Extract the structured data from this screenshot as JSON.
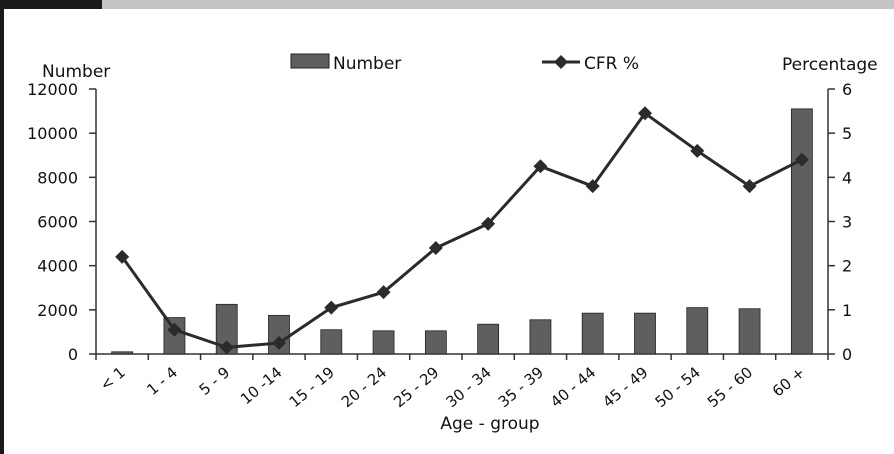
{
  "chart_data": {
    "type": "bar",
    "categories": [
      "< 1",
      "1 - 4",
      "5 - 9",
      "10 -14",
      "15 - 19",
      "20 - 24",
      "25 - 29",
      "30 - 34",
      "35 - 39",
      "40 - 44",
      "45 - 49",
      "50 - 54",
      "55 - 60",
      "60 +"
    ],
    "series": [
      {
        "name": "Number",
        "type": "bar",
        "axis": "left",
        "color": "#5f5f5f",
        "values": [
          100,
          1650,
          2250,
          1750,
          1100,
          1050,
          1050,
          1350,
          1550,
          1850,
          1850,
          2100,
          2050,
          11100
        ]
      },
      {
        "name": "CFR %",
        "type": "line",
        "axis": "right",
        "color": "#2b2b2b",
        "marker": "diamond",
        "values": [
          2.2,
          0.55,
          0.15,
          0.25,
          1.05,
          1.4,
          2.4,
          2.95,
          4.25,
          3.8,
          5.45,
          4.6,
          3.8,
          4.4
        ]
      }
    ],
    "ylabel_left": "Number",
    "ylabel_right": "Percentage",
    "xlabel": "Age - group",
    "ylim_left": [
      0,
      12000
    ],
    "ylim_right": [
      0,
      6
    ],
    "yticks_left": [
      "0",
      "2000",
      "4000",
      "6000",
      "8000",
      "10000",
      "12000"
    ],
    "yticks_right": [
      "0",
      "1",
      "2",
      "3",
      "4",
      "5",
      "6"
    ],
    "grid": false,
    "legend_position": "top"
  },
  "colors": {
    "header_dark": "#1a1a1a",
    "header_gray": "#c4c4c4",
    "frame": "#1a1a1a"
  }
}
